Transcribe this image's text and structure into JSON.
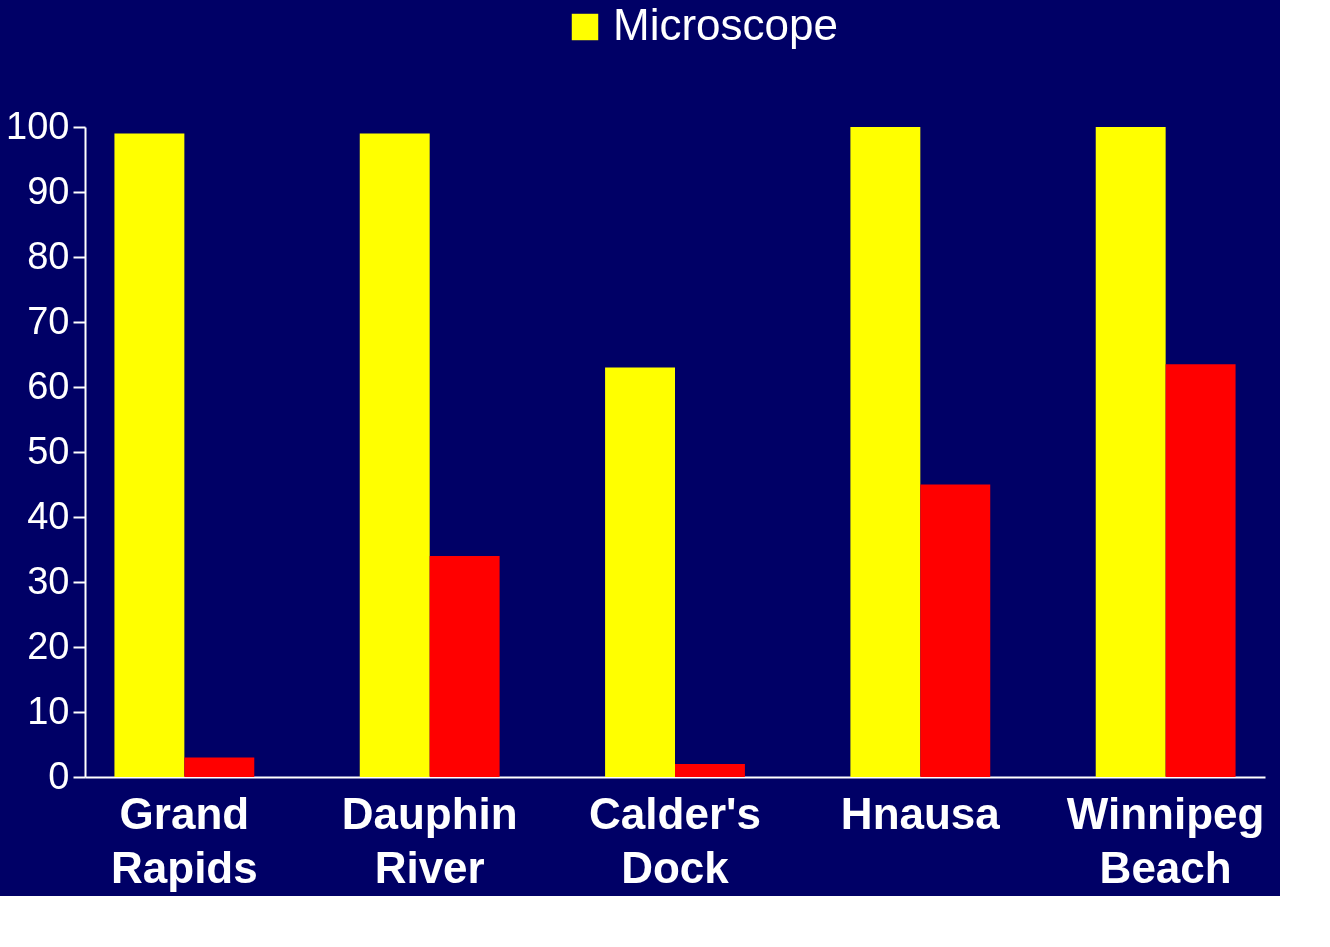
{
  "chart_data": {
    "type": "bar",
    "categories": [
      "Grand Rapids",
      "Dauphin River",
      "Calder's Dock",
      "Hnausa",
      "Winnipeg Beach"
    ],
    "series": [
      {
        "name": "Microscope",
        "color": "#ffff00",
        "values": [
          99,
          99,
          63,
          100,
          100
        ]
      },
      {
        "color": "#ff0000",
        "values": [
          3,
          34,
          2,
          45,
          63.5
        ]
      }
    ],
    "ylim": [
      0,
      100
    ],
    "yticks": [
      0,
      10,
      20,
      30,
      40,
      50,
      60,
      70,
      80,
      90,
      100
    ],
    "grid": false,
    "legend": "top"
  }
}
